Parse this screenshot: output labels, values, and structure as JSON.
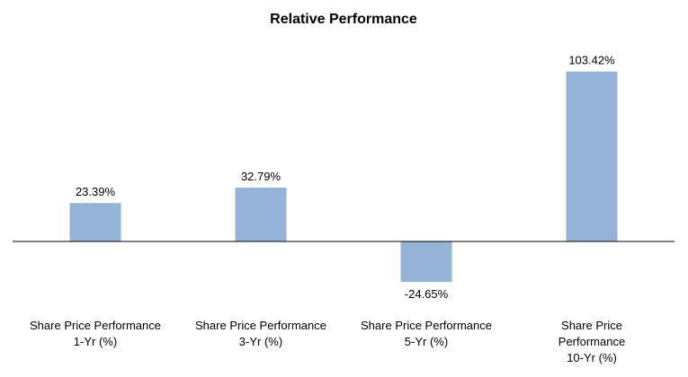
{
  "chart_data": {
    "type": "bar",
    "title": "Relative Performance",
    "xlabel": "",
    "ylabel": "",
    "categories": [
      [
        "Share Price Performance",
        "1-Yr (%)"
      ],
      [
        "Share Price Performance",
        "3-Yr (%)"
      ],
      [
        "Share Price Performance",
        "5-Yr (%)"
      ],
      [
        "Share Price",
        "Performance",
        "10-Yr (%)"
      ]
    ],
    "values": [
      23.39,
      32.79,
      -24.65,
      103.42
    ],
    "data_labels": [
      "23.39%",
      "32.79%",
      "-24.65%",
      "103.42%"
    ],
    "ylim": [
      -30,
      110
    ],
    "grid": false,
    "legend": "none",
    "bar_color": "#95B3D7",
    "axis_color": "#000000"
  }
}
